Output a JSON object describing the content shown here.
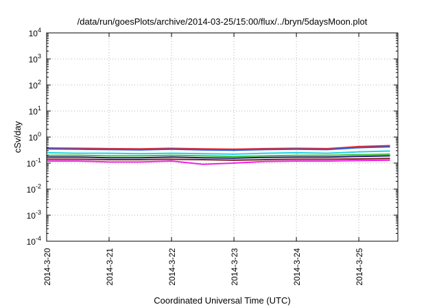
{
  "chart_data": {
    "type": "line",
    "title": "/data/run/goesPlots/archive/2014-03-25/15:00/flux/../bryn/5daysMoon.plot",
    "xlabel": "Coordinated Universal Time (UTC)",
    "ylabel": "cSv/day",
    "y_scale": "log",
    "ylim": [
      0.0001,
      10000
    ],
    "y_ticks": [
      {
        "value": 0.0001,
        "base": "10",
        "exp": "-4"
      },
      {
        "value": 0.001,
        "base": "10",
        "exp": "-3"
      },
      {
        "value": 0.01,
        "base": "10",
        "exp": "-2"
      },
      {
        "value": 0.1,
        "base": "10",
        "exp": "-1"
      },
      {
        "value": 1,
        "base": "10",
        "exp": "0"
      },
      {
        "value": 10,
        "base": "10",
        "exp": "1"
      },
      {
        "value": 100,
        "base": "10",
        "exp": "2"
      },
      {
        "value": 1000,
        "base": "10",
        "exp": "3"
      },
      {
        "value": 10000,
        "base": "10",
        "exp": "4"
      }
    ],
    "x_type": "date",
    "xlim": [
      "2014-03-20T00:00",
      "2014-03-25T15:00"
    ],
    "x_ticks": [
      {
        "value": "2014-03-20T00:00",
        "label": "2014-3-20"
      },
      {
        "value": "2014-03-21T00:00",
        "label": "2014-3-21"
      },
      {
        "value": "2014-03-22T00:00",
        "label": "2014-3-22"
      },
      {
        "value": "2014-03-23T00:00",
        "label": "2014-3-23"
      },
      {
        "value": "2014-03-24T00:00",
        "label": "2014-3-24"
      },
      {
        "value": "2014-03-25T00:00",
        "label": "2014-3-25"
      }
    ],
    "grid": true,
    "legend": "none",
    "x": [
      "2014-03-20T00:00",
      "2014-03-20T12:00",
      "2014-03-21T00:00",
      "2014-03-21T12:00",
      "2014-03-22T00:00",
      "2014-03-22T12:00",
      "2014-03-23T00:00",
      "2014-03-23T12:00",
      "2014-03-24T00:00",
      "2014-03-24T12:00",
      "2014-03-25T00:00",
      "2014-03-25T12:00"
    ],
    "series": [
      {
        "color": "#e8262a",
        "values": [
          0.38,
          0.37,
          0.36,
          0.35,
          0.37,
          0.35,
          0.34,
          0.36,
          0.37,
          0.36,
          0.43,
          0.47
        ]
      },
      {
        "color": "#2e5cd6",
        "values": [
          0.35,
          0.34,
          0.33,
          0.32,
          0.34,
          0.32,
          0.31,
          0.33,
          0.34,
          0.33,
          0.39,
          0.42
        ]
      },
      {
        "color": "#1dd3e0",
        "values": [
          0.25,
          0.24,
          0.24,
          0.23,
          0.24,
          0.23,
          0.22,
          0.24,
          0.25,
          0.24,
          0.27,
          0.29
        ]
      },
      {
        "color": "#3fbf3f",
        "values": [
          0.2,
          0.2,
          0.19,
          0.19,
          0.2,
          0.19,
          0.18,
          0.19,
          0.2,
          0.2,
          0.21,
          0.22
        ]
      },
      {
        "color": "#1b1a6b",
        "values": [
          0.17,
          0.17,
          0.16,
          0.16,
          0.17,
          0.16,
          0.155,
          0.165,
          0.17,
          0.17,
          0.18,
          0.19
        ]
      },
      {
        "color": "#7a1818",
        "values": [
          0.14,
          0.14,
          0.135,
          0.135,
          0.14,
          0.135,
          0.13,
          0.135,
          0.14,
          0.14,
          0.145,
          0.15
        ]
      },
      {
        "color": "#f01ee8",
        "values": [
          0.12,
          0.12,
          0.11,
          0.11,
          0.12,
          0.09,
          0.1,
          0.115,
          0.12,
          0.12,
          0.125,
          0.13
        ]
      }
    ]
  }
}
